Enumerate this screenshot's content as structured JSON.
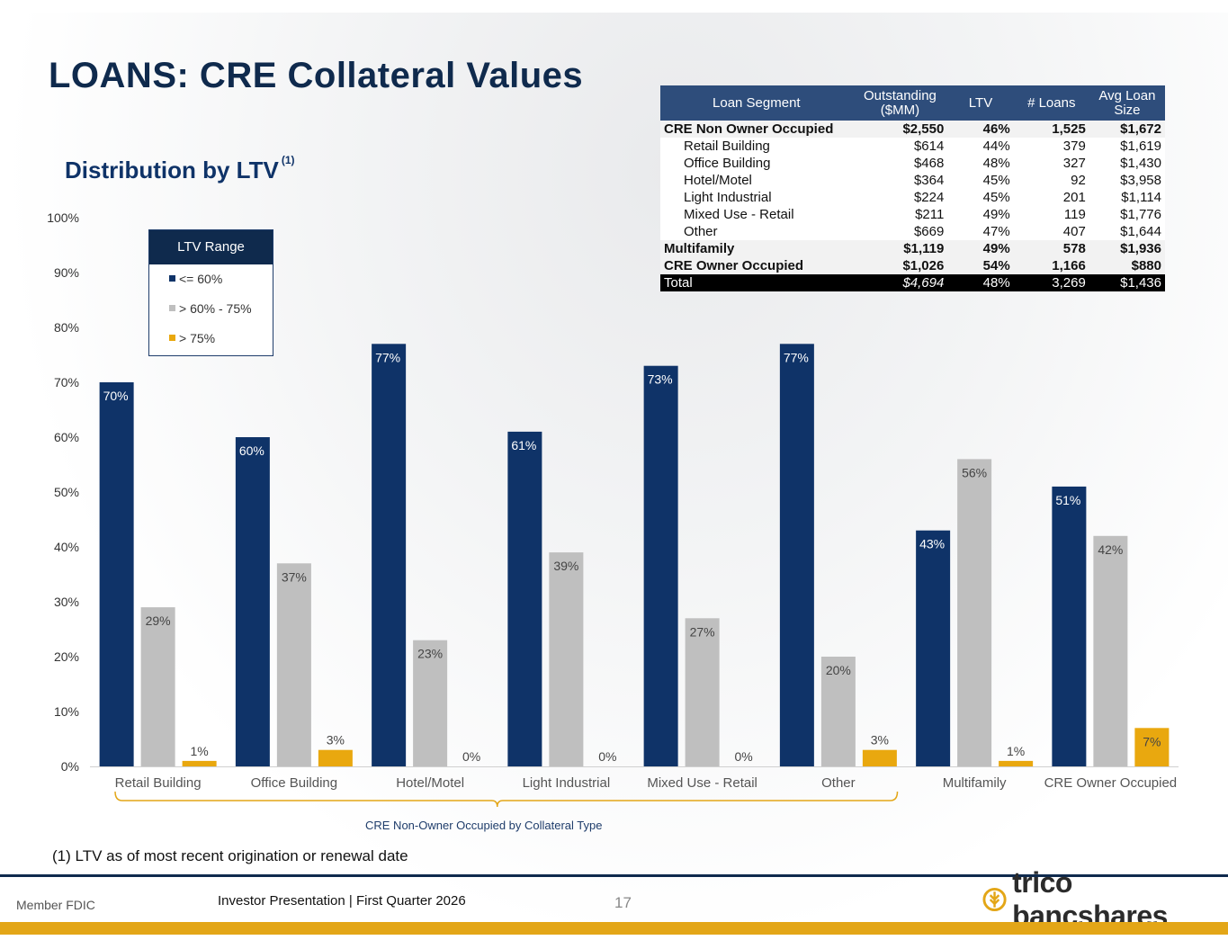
{
  "slide": {
    "title": "LOANS: CRE Collateral Values",
    "subtitle": "Distribution by LTV",
    "subtitle_note": "(1)",
    "footnote": "(1) LTV as of most recent origination or renewal date",
    "footer_left": "Member FDIC",
    "footer_center": "Investor Presentation  |  First Quarter 2026",
    "page_number": "17",
    "logo_text": "trico bancshares"
  },
  "table": {
    "headers": [
      "Loan Segment",
      "Outstanding ($MM)",
      "LTV",
      "# Loans",
      "Avg Loan Size"
    ],
    "rows": [
      {
        "segment": "CRE Non Owner Occupied",
        "outstanding": "$2,550",
        "ltv": "46%",
        "loans": "1,525",
        "avg": "$1,672",
        "style": "bold"
      },
      {
        "segment": "Retail Building",
        "outstanding": "$614",
        "ltv": "44%",
        "loans": "379",
        "avg": "$1,619",
        "style": "sub"
      },
      {
        "segment": "Office Building",
        "outstanding": "$468",
        "ltv": "48%",
        "loans": "327",
        "avg": "$1,430",
        "style": "sub"
      },
      {
        "segment": "Hotel/Motel",
        "outstanding": "$364",
        "ltv": "45%",
        "loans": "92",
        "avg": "$3,958",
        "style": "sub"
      },
      {
        "segment": "Light Industrial",
        "outstanding": "$224",
        "ltv": "45%",
        "loans": "201",
        "avg": "$1,114",
        "style": "sub"
      },
      {
        "segment": "Mixed Use - Retail",
        "outstanding": "$211",
        "ltv": "49%",
        "loans": "119",
        "avg": "$1,776",
        "style": "sub"
      },
      {
        "segment": "Other",
        "outstanding": "$669",
        "ltv": "47%",
        "loans": "407",
        "avg": "$1,644",
        "style": "sub"
      },
      {
        "segment": "Multifamily",
        "outstanding": "$1,119",
        "ltv": "49%",
        "loans": "578",
        "avg": "$1,936",
        "style": "bold"
      },
      {
        "segment": "CRE Owner Occupied",
        "outstanding": "$1,026",
        "ltv": "54%",
        "loans": "1,166",
        "avg": "$880",
        "style": "bold"
      },
      {
        "segment": "Total",
        "outstanding": "$4,694",
        "ltv": "48%",
        "loans": "3,269",
        "avg": "$1,436",
        "style": "total"
      }
    ]
  },
  "chart_data": {
    "type": "bar",
    "title": "Distribution by LTV",
    "categories": [
      "Retail Building",
      "Office Building",
      "Hotel/Motel",
      "Light Industrial",
      "Mixed Use - Retail",
      "Other",
      "Multifamily",
      "CRE Owner Occupied"
    ],
    "series": [
      {
        "name": "<= 60%",
        "color": "#0f3368",
        "values": [
          70,
          60,
          77,
          61,
          73,
          77,
          43,
          51
        ]
      },
      {
        "name": "> 60% - 75%",
        "color": "#bfbfbf",
        "values": [
          29,
          37,
          23,
          39,
          27,
          20,
          56,
          42
        ]
      },
      {
        "name": "> 75%",
        "color": "#e9a80f",
        "values": [
          1,
          3,
          0,
          0,
          0,
          3,
          1,
          7
        ]
      }
    ],
    "ylim": [
      0,
      100
    ],
    "yticks": [
      "0%",
      "10%",
      "20%",
      "30%",
      "40%",
      "50%",
      "60%",
      "70%",
      "80%",
      "90%",
      "100%"
    ],
    "legend_title": "LTV Range",
    "legend_position": "top-left",
    "bracket_label": "CRE Non-Owner Occupied by Collateral Type",
    "xlabel": "",
    "ylabel": ""
  }
}
